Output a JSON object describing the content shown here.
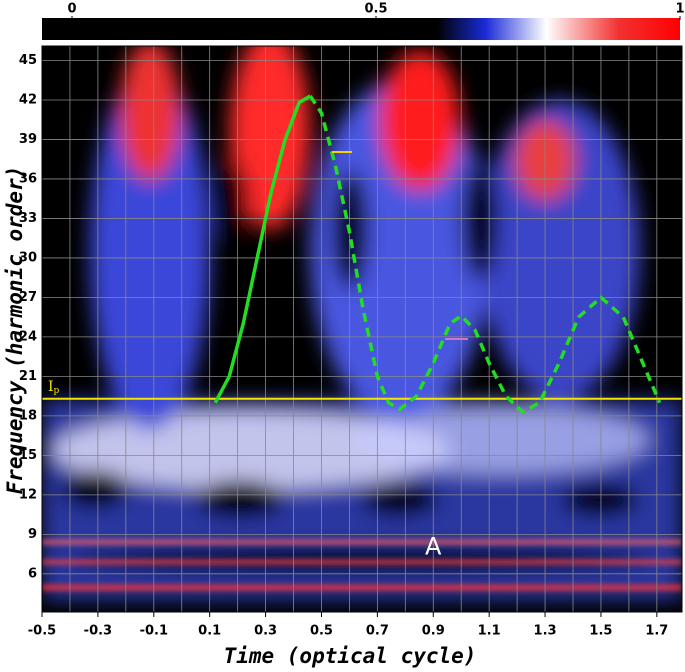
{
  "chart_data": {
    "type": "spectrogram",
    "x_label": "Time (optical cycle)",
    "y_label": "Frequency (harmonic order)",
    "xlim": [
      -0.5,
      1.79
    ],
    "ylim": [
      3.1,
      46.1
    ],
    "xticks": [
      -0.5,
      -0.3,
      -0.1,
      0.1,
      0.3,
      0.5,
      0.7,
      0.9,
      1.1,
      1.3,
      1.5,
      1.7
    ],
    "yticks": [
      6,
      9,
      12,
      15,
      18,
      21,
      24,
      27,
      30,
      33,
      36,
      39,
      42,
      45
    ],
    "xgrid": [
      -0.4,
      -0.3,
      -0.2,
      -0.1,
      0,
      0.1,
      0.2,
      0.3,
      0.4,
      0.5,
      0.6,
      0.7,
      0.8,
      0.9,
      1.0,
      1.1,
      1.2,
      1.3,
      1.4,
      1.5,
      1.6,
      1.7
    ],
    "grid": true,
    "colorbar": {
      "lim": [
        0,
        1
      ],
      "ticks": [
        0,
        0.5,
        1
      ],
      "colormap": [
        [
          0,
          "#000000"
        ],
        [
          0.6,
          "#000000"
        ],
        [
          0.68,
          "#1a2bd8"
        ],
        [
          0.78,
          "#ffffff"
        ],
        [
          0.9,
          "#f23030"
        ],
        [
          1,
          "#ff0000"
        ]
      ]
    },
    "ip_level": 19.3,
    "ip_label": "I",
    "ip_subscript": "p",
    "ip_color": "#f2e600",
    "annotation": {
      "text": "A",
      "x": 0.9,
      "y": 8
    },
    "series": [
      {
        "color": "#22dd22",
        "dashed": false,
        "x": [
          0.12,
          0.17,
          0.22,
          0.27,
          0.32,
          0.37,
          0.42,
          0.46
        ],
        "values": [
          19,
          21,
          25,
          30,
          35,
          39,
          41.8,
          42.3
        ]
      },
      {
        "color": "#22dd22",
        "dashed": true,
        "x": [
          0.46,
          0.5,
          0.55,
          0.6,
          0.65,
          0.7,
          0.74,
          0.78,
          0.84,
          0.9,
          0.96,
          1.0,
          1.05,
          1.1,
          1.16,
          1.22,
          1.28,
          1.35,
          1.42,
          1.5,
          1.58,
          1.65,
          1.71
        ],
        "values": [
          42.3,
          41,
          37,
          32,
          26,
          21,
          19,
          18.5,
          19.5,
          22,
          25,
          25.6,
          24.5,
          22,
          19.5,
          18.3,
          19,
          22,
          25.5,
          27,
          25.5,
          22,
          19
        ]
      }
    ]
  }
}
